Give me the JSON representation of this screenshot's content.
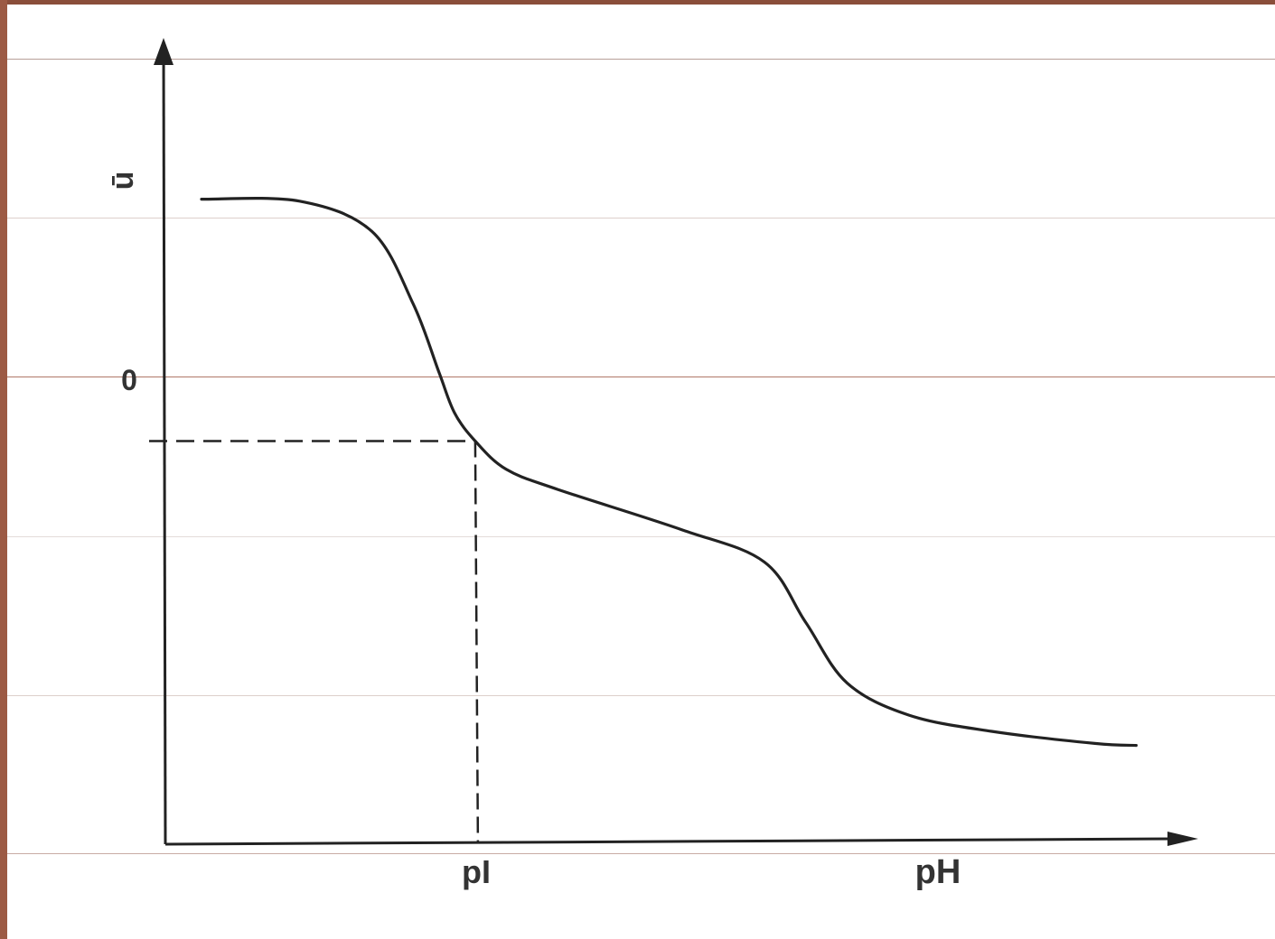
{
  "colors": {
    "frame": "#9c5a44",
    "rule_lines": "#b89a90",
    "ink": "#222222"
  },
  "chart_data": {
    "type": "line",
    "title": "",
    "xlabel": "pH",
    "ylabel": "ū",
    "zero_label": "0",
    "pI_label": "pI",
    "xlim": [
      0,
      1
    ],
    "ylim": [
      -1,
      1
    ],
    "grid": false,
    "series": [
      {
        "x": [
          0.035,
          0.13,
          0.2,
          0.24,
          0.265,
          0.28,
          0.3,
          0.33,
          0.38,
          0.5,
          0.58,
          0.62,
          0.66,
          0.72,
          0.8,
          0.9,
          0.94
        ],
        "values": [
          0.6,
          0.595,
          0.52,
          0.34,
          0.17,
          0.07,
          0.0,
          -0.07,
          -0.12,
          -0.22,
          -0.3,
          -0.45,
          -0.6,
          -0.68,
          -0.72,
          -0.75,
          -0.755
        ]
      }
    ],
    "reference_lines": [
      {
        "type": "horizontal",
        "y": 0,
        "style": "dashed"
      },
      {
        "type": "vertical",
        "x": 0.3,
        "style": "dashed"
      }
    ]
  }
}
